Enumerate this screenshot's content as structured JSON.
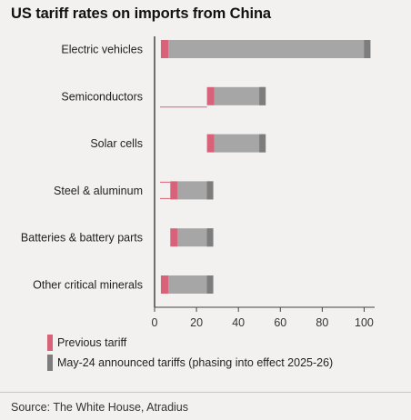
{
  "title": "US tariff rates on imports from China",
  "source": "Source: The White House, Atradius",
  "colors": {
    "previous": "#d9627b",
    "announced": "#a6a6a6",
    "announced_cap": "#7d7d7d",
    "axis": "#444444",
    "background": "#f2f1ef"
  },
  "chart_data": {
    "type": "bar",
    "orientation": "horizontal",
    "title": "US tariff rates on imports from China",
    "categories": [
      "Electric vehicles",
      "Semiconductors",
      "Solar cells",
      "Steel & aluminum",
      "Batteries & battery parts",
      "Other critical minerals"
    ],
    "series": [
      {
        "name": "Previous tariff",
        "values": [
          [
            3,
            6.5
          ],
          [
            25,
            28.5
          ],
          [
            25,
            28.5
          ],
          [
            7.5,
            11
          ],
          [
            7.5,
            11
          ],
          [
            3,
            6.5
          ]
        ]
      },
      {
        "name": "May-24 announced tariffs (phasing into effect 2025-26)",
        "values": [
          [
            6.5,
            103
          ],
          [
            28.5,
            53
          ],
          [
            28.5,
            53
          ],
          [
            11,
            28
          ],
          [
            11,
            28
          ],
          [
            6.5,
            28
          ]
        ]
      }
    ],
    "xlim": [
      0,
      105
    ],
    "xticks": [
      0,
      20,
      40,
      60,
      80,
      100
    ],
    "xlabel": "",
    "ylabel": "",
    "legend_position": "bottom-left",
    "grid": false
  }
}
